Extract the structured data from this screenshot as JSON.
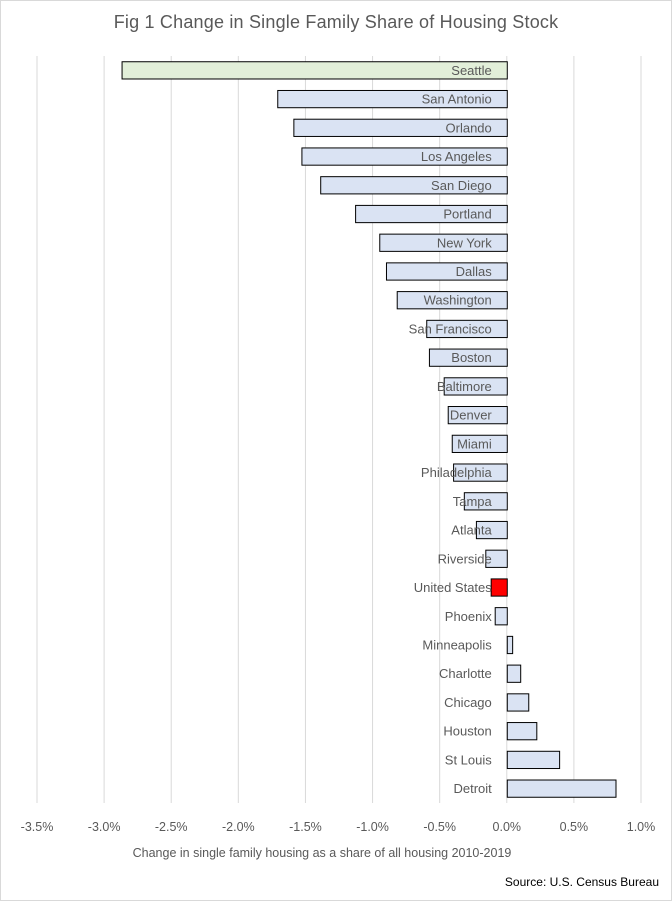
{
  "chart_data": {
    "type": "bar",
    "orientation": "horizontal",
    "title": "Fig 1 Change in Single Family Share of Housing Stock",
    "xlabel": "Change in single family housing as a share of all housing 2010-2019",
    "ylabel": "",
    "xlim": [
      -3.5,
      1.0
    ],
    "x_ticks": [
      "-3.5%",
      "-3.0%",
      "-2.5%",
      "-2.0%",
      "-1.5%",
      "-1.0%",
      "-0.5%",
      "0.0%",
      "0.5%",
      "1.0%"
    ],
    "x_tick_values": [
      -3.5,
      -3.0,
      -2.5,
      -2.0,
      -1.5,
      -1.0,
      -0.5,
      0.0,
      0.5,
      1.0
    ],
    "grid": "vertical",
    "source": "Source: U.S. Census Bureau",
    "categories": [
      "Seattle",
      "San Antonio",
      "Orlando",
      "Los Angeles",
      "San Diego",
      "Portland",
      "New York",
      "Dallas",
      "Washington",
      "San Francisco",
      "Boston",
      "Baltimore",
      "Denver",
      "Miami",
      "Philadelphia",
      "Tampa",
      "Atlanta",
      "Riverside",
      "United States",
      "Phoenix",
      "Minneapolis",
      "Charlotte",
      "Chicago",
      "Houston",
      "St Louis",
      "Detroit"
    ],
    "values": [
      -2.87,
      -1.71,
      -1.59,
      -1.53,
      -1.39,
      -1.13,
      -0.95,
      -0.9,
      -0.82,
      -0.6,
      -0.58,
      -0.47,
      -0.44,
      -0.41,
      -0.4,
      -0.32,
      -0.23,
      -0.16,
      -0.12,
      -0.09,
      0.04,
      0.1,
      0.16,
      0.22,
      0.39,
      0.81
    ],
    "highlight": {
      "Seattle": "#e2efd9",
      "United States": "#ff0000"
    },
    "colors": {
      "bar_fill": "#dae3f3",
      "bar_stroke": "#000000",
      "grid": "#d9d9d9",
      "text": "#595959"
    }
  }
}
